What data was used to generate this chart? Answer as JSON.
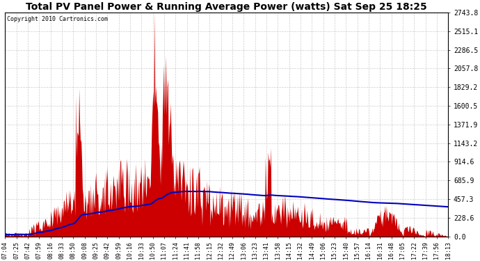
{
  "title": "Total PV Panel Power & Running Average Power (watts) Sat Sep 25 18:25",
  "copyright": "Copyright 2010 Cartronics.com",
  "background_color": "#ffffff",
  "plot_bg_color": "#ffffff",
  "grid_color": "#cccccc",
  "fill_color": "#cc0000",
  "line_color": "#0000bb",
  "y_ticks": [
    0.0,
    228.6,
    457.3,
    685.9,
    914.6,
    1143.2,
    1371.9,
    1600.5,
    1829.2,
    2057.8,
    2286.5,
    2515.1,
    2743.8
  ],
  "x_labels": [
    "07:04",
    "07:25",
    "07:42",
    "07:59",
    "08:16",
    "08:33",
    "08:50",
    "09:08",
    "09:25",
    "09:42",
    "09:59",
    "10:16",
    "10:33",
    "10:50",
    "11:07",
    "11:24",
    "11:41",
    "11:58",
    "12:15",
    "12:32",
    "12:49",
    "13:06",
    "13:23",
    "13:41",
    "13:58",
    "14:15",
    "14:32",
    "14:49",
    "15:06",
    "15:23",
    "15:40",
    "15:57",
    "16:14",
    "16:31",
    "16:48",
    "17:05",
    "17:22",
    "17:39",
    "17:56",
    "18:13"
  ],
  "ymax": 2743.8,
  "ymin": 0.0,
  "title_fontsize": 10,
  "tick_fontsize": 7,
  "x_tick_fontsize": 6
}
